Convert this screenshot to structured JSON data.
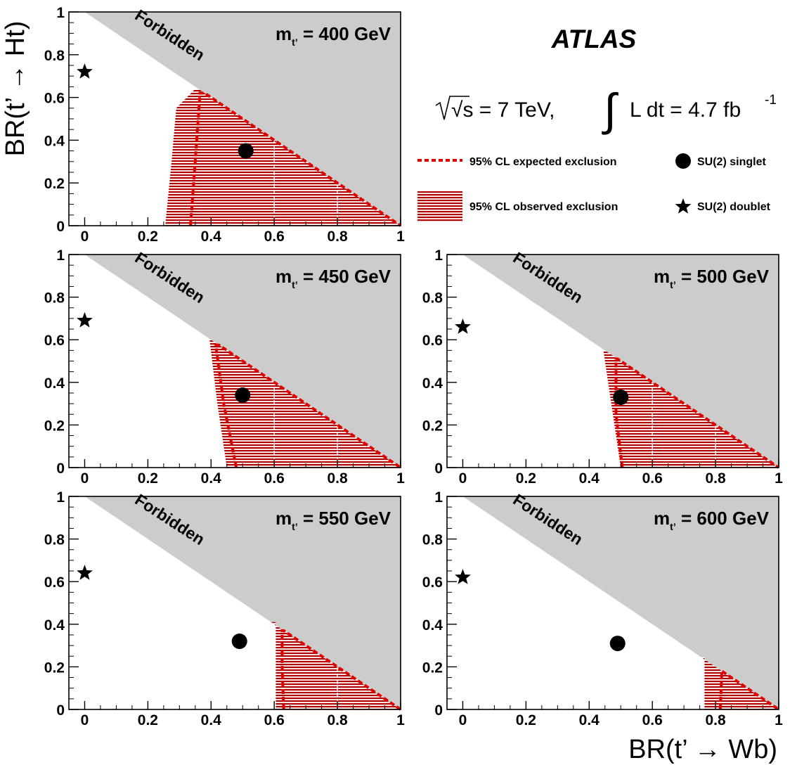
{
  "header": {
    "experiment": "ATLAS",
    "energy": "√s = 7 TeV,",
    "lumi_integral": "∫",
    "lumi_text": "L dt = 4.7 fb",
    "lumi_exp": "-1"
  },
  "legend": {
    "expected": "95% CL expected exclusion",
    "observed": "95% CL observed exclusion",
    "singlet": "SU(2) singlet",
    "doublet": "SU(2) doublet"
  },
  "axes": {
    "ylabel": "BR(t’ → Ht)",
    "xlabel": "BR(t’ → Wb)",
    "x_ticks": [
      "0",
      "0.2",
      "0.4",
      "0.6",
      "0.8",
      "1"
    ],
    "y_ticks": [
      "0",
      "0.2",
      "0.4",
      "0.6",
      "0.8",
      "1"
    ]
  },
  "colors": {
    "forbidden": "#cccccc",
    "exclusion": "#b20000",
    "expected": "#e00000"
  },
  "chart_data": [
    {
      "type": "area",
      "mass_label": "m",
      "mass_sub": "t’",
      "mass_value": " = 400 GeV",
      "forbidden_label": "Forbidden",
      "xlim": [
        -0.05,
        1.0
      ],
      "ylim": [
        0,
        1
      ],
      "observed_boundary": [
        [
          0.255,
          0
        ],
        [
          0.275,
          0.3
        ],
        [
          0.29,
          0.55
        ],
        [
          0.35,
          0.64
        ]
      ],
      "expected_boundary": [
        [
          0.335,
          0
        ],
        [
          0.35,
          0.3
        ],
        [
          0.365,
          0.62
        ]
      ],
      "singlet": {
        "x": 0.51,
        "y": 0.35
      },
      "doublet": {
        "x": 0.0,
        "y": 0.72
      }
    },
    {
      "type": "area",
      "mass_label": "m",
      "mass_sub": "t’",
      "mass_value": " = 450 GeV",
      "forbidden_label": "Forbidden",
      "xlim": [
        -0.05,
        1.0
      ],
      "ylim": [
        0,
        1
      ],
      "observed_boundary": [
        [
          0.45,
          0
        ],
        [
          0.42,
          0.3
        ],
        [
          0.395,
          0.605
        ]
      ],
      "expected_boundary": [
        [
          0.48,
          0
        ],
        [
          0.44,
          0.3
        ],
        [
          0.415,
          0.575
        ]
      ],
      "singlet": {
        "x": 0.5,
        "y": 0.34
      },
      "doublet": {
        "x": 0.0,
        "y": 0.69
      }
    },
    {
      "type": "area",
      "mass_label": "m",
      "mass_sub": "t’",
      "mass_value": " = 500 GeV",
      "forbidden_label": "Forbidden",
      "xlim": [
        -0.05,
        1.0
      ],
      "ylim": [
        0,
        1
      ],
      "observed_boundary": [
        [
          0.5,
          0
        ],
        [
          0.475,
          0.25
        ],
        [
          0.445,
          0.55
        ]
      ],
      "expected_boundary": [
        [
          0.505,
          0
        ],
        [
          0.485,
          0.25
        ],
        [
          0.485,
          0.51
        ]
      ],
      "singlet": {
        "x": 0.5,
        "y": 0.33
      },
      "doublet": {
        "x": 0.0,
        "y": 0.66
      }
    },
    {
      "type": "area",
      "mass_label": "m",
      "mass_sub": "t’",
      "mass_value": " = 550 GeV",
      "forbidden_label": "Forbidden",
      "xlim": [
        -0.05,
        1.0
      ],
      "ylim": [
        0,
        1
      ],
      "observed_boundary": [
        [
          0.605,
          0
        ],
        [
          0.605,
          0.41
        ]
      ],
      "expected_boundary": [
        [
          0.63,
          0
        ],
        [
          0.625,
          0.2
        ],
        [
          0.625,
          0.37
        ]
      ],
      "singlet": {
        "x": 0.49,
        "y": 0.32
      },
      "doublet": {
        "x": 0.0,
        "y": 0.64
      }
    },
    {
      "type": "area",
      "mass_label": "m",
      "mass_sub": "t’",
      "mass_value": " = 600 GeV",
      "forbidden_label": "Forbidden",
      "xlim": [
        -0.05,
        1.0
      ],
      "ylim": [
        0,
        1
      ],
      "observed_boundary": [
        [
          0.765,
          0
        ],
        [
          0.765,
          0.245
        ]
      ],
      "expected_boundary": [
        [
          0.815,
          0
        ],
        [
          0.82,
          0.18
        ]
      ],
      "singlet": {
        "x": 0.49,
        "y": 0.31
      },
      "doublet": {
        "x": 0.0,
        "y": 0.62
      }
    }
  ]
}
